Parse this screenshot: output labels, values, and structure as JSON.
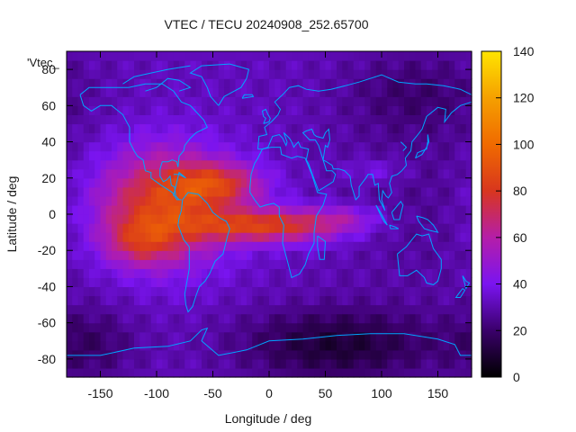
{
  "chart_data": {
    "type": "heatmap",
    "title": "VTEC / TECU 20240908_252.65700",
    "xlabel": "Longitude / deg",
    "ylabel": "Latitude / deg",
    "key_label": "'Vtec_",
    "xlim": [
      -180,
      180
    ],
    "ylim": [
      -90,
      90
    ],
    "xticks": [
      -150,
      -100,
      -50,
      0,
      50,
      100,
      150
    ],
    "yticks": [
      -80,
      -60,
      -40,
      -20,
      0,
      20,
      40,
      60,
      80
    ],
    "colorbar": {
      "min": 0,
      "max": 140,
      "ticks": [
        0,
        20,
        40,
        60,
        80,
        100,
        120,
        140
      ]
    },
    "colors": {
      "coastline": "#00a5ff",
      "palette": [
        "#000000",
        "#3a006a",
        "#7a14f0",
        "#b51ea8",
        "#d8361e",
        "#f06a00",
        "#f5a000",
        "#ffe400"
      ]
    },
    "background_vtec": 32,
    "features": [
      {
        "name": "americas-bulge",
        "lon": -95,
        "lat": 5,
        "slon": 42,
        "slat": 22,
        "amp": 52
      },
      {
        "name": "atlantic-crest-north",
        "lon": -45,
        "lat": 17,
        "slon": 28,
        "slat": 8,
        "amp": 36
      },
      {
        "name": "atlantic-crest-south",
        "lon": -25,
        "lat": -6,
        "slon": 38,
        "slat": 6,
        "amp": 32
      },
      {
        "name": "pacific-south",
        "lon": -115,
        "lat": -15,
        "slon": 22,
        "slat": 9,
        "amp": 24
      },
      {
        "name": "africa-band",
        "lon": 25,
        "lat": -6,
        "slon": 36,
        "slat": 7,
        "amp": 30
      },
      {
        "name": "indian-band",
        "lon": 70,
        "lat": -2,
        "slon": 22,
        "slat": 5,
        "amp": 14
      },
      {
        "name": "arabia-lobe",
        "lon": 95,
        "lat": 24,
        "slon": 20,
        "slat": 5,
        "amp": 10
      },
      {
        "name": "east-trough",
        "lon": 140,
        "lat": 10,
        "slon": 60,
        "slat": 40,
        "amp": -6
      },
      {
        "name": "south-pole-low",
        "lon": 60,
        "lat": -72,
        "slon": 60,
        "slat": 14,
        "amp": -22
      },
      {
        "name": "south-west-low",
        "lon": -160,
        "lat": -72,
        "slon": 30,
        "slat": 14,
        "amp": -12
      },
      {
        "name": "north-east-low",
        "lon": 130,
        "lat": 68,
        "slon": 45,
        "slat": 16,
        "amp": -10
      }
    ]
  }
}
